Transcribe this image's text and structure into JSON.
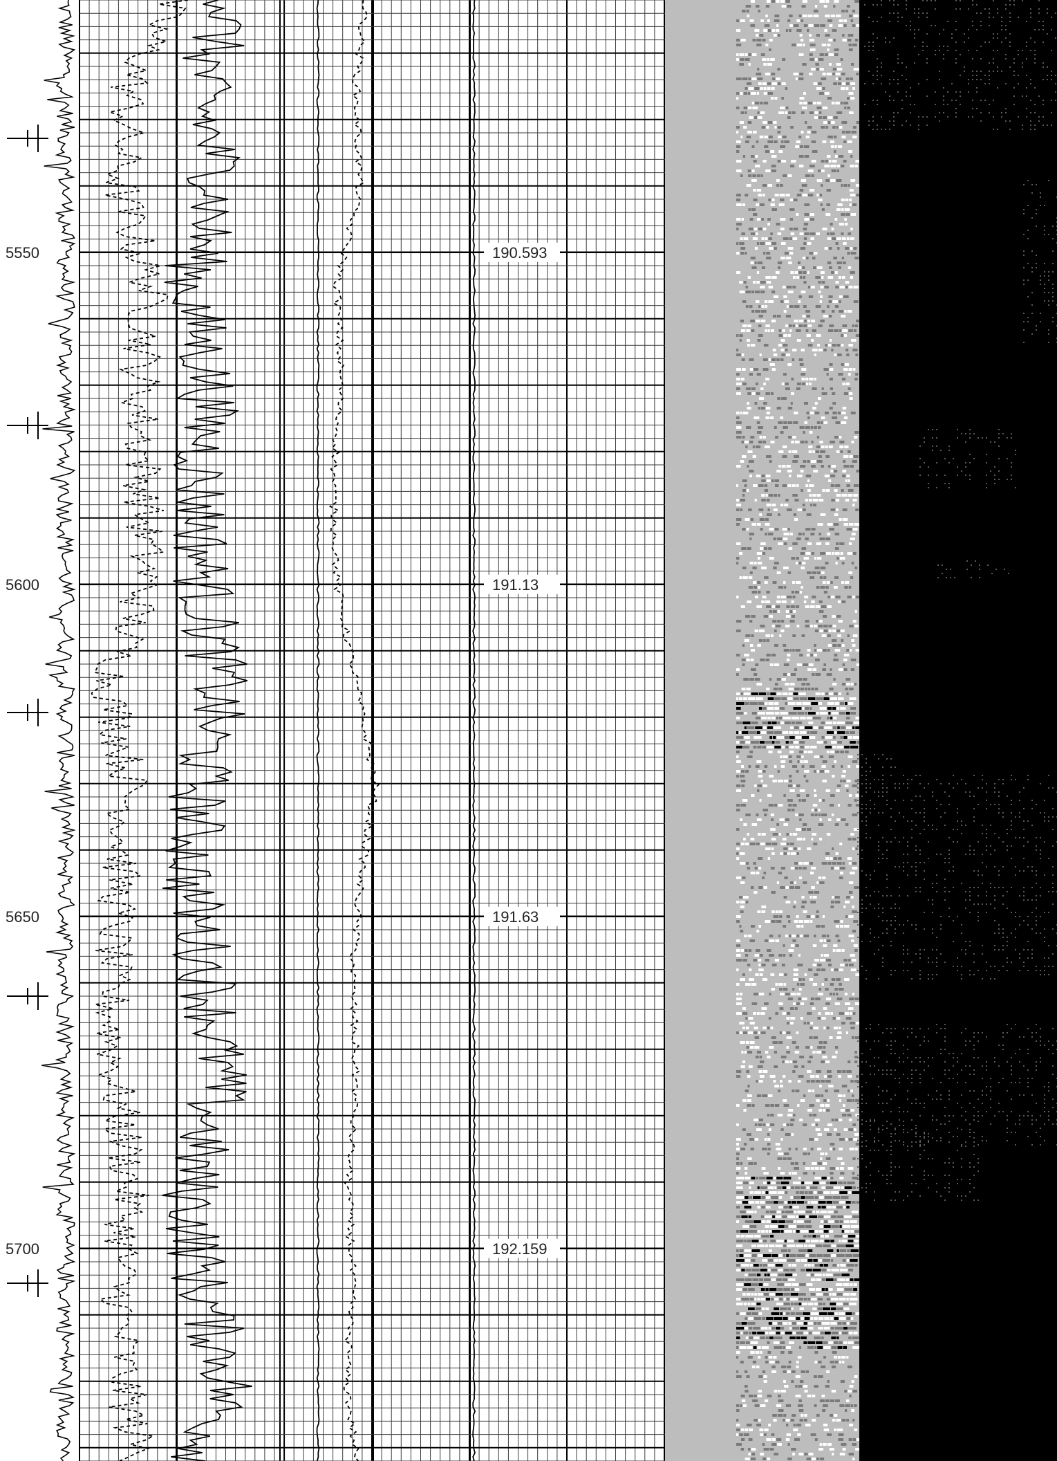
{
  "chart_data": {
    "type": "line",
    "title": "",
    "xlabel": "",
    "ylabel": "",
    "depth_range": [
      5512,
      5732
    ],
    "depth_ticks": [
      5550,
      5600,
      5650,
      5700
    ],
    "depth_tick_labels": [
      "5550",
      "5600",
      "5650",
      "5700"
    ],
    "track_value_labels": [
      {
        "depth": 5550,
        "text": "190.593"
      },
      {
        "depth": 5600,
        "text": "191.13"
      },
      {
        "depth": 5650,
        "text": "191.63"
      },
      {
        "depth": 5700,
        "text": "192.159"
      }
    ],
    "grid": true,
    "tracks": {
      "left_trace": {
        "style": "solid",
        "description": "high-frequency oscillating trace with spikes"
      },
      "track1": [
        {
          "style": "dashed",
          "depth_samples": [
            5512,
            5525,
            5540,
            5555,
            5570,
            5585,
            5600,
            5615,
            5630,
            5645,
            5660,
            5675,
            5690,
            5705,
            5720,
            5732
          ],
          "values": [
            0.45,
            0.25,
            0.2,
            0.35,
            0.3,
            0.32,
            0.33,
            0.15,
            0.25,
            0.2,
            0.15,
            0.18,
            0.25,
            0.2,
            0.22,
            0.3
          ]
        },
        {
          "style": "solid",
          "depth_samples": [
            5512,
            5525,
            5540,
            5555,
            5570,
            5585,
            5600,
            5615,
            5630,
            5645,
            5660,
            5675,
            5690,
            5705,
            5720,
            5732
          ],
          "values": [
            0.75,
            0.6,
            0.7,
            0.55,
            0.65,
            0.6,
            0.62,
            0.7,
            0.6,
            0.55,
            0.65,
            0.7,
            0.55,
            0.6,
            0.75,
            0.6
          ]
        }
      ],
      "track2": [
        {
          "style": "solid",
          "depth_samples": [
            5512,
            5732
          ],
          "values": [
            0.2,
            0.2
          ]
        },
        {
          "style": "dashed",
          "depth_samples": [
            5512,
            5525,
            5540,
            5555,
            5570,
            5585,
            5600,
            5615,
            5630,
            5645,
            5660,
            5675,
            5690,
            5705,
            5720,
            5732
          ],
          "values": [
            0.45,
            0.4,
            0.42,
            0.3,
            0.32,
            0.28,
            0.3,
            0.4,
            0.5,
            0.42,
            0.38,
            0.4,
            0.36,
            0.38,
            0.35,
            0.4
          ]
        }
      ],
      "track3": [
        {
          "style": "solid",
          "depth_samples": [
            5512,
            5732
          ],
          "values": [
            0.02,
            0.02
          ]
        }
      ],
      "image_track": {
        "type": "heatmap",
        "colors": [
          "#bdbdbd",
          "#ffffff",
          "#777777",
          "#000000"
        ]
      }
    },
    "colors": {
      "grid_minor": "#3a3a3a",
      "grid_major": "#000000",
      "trace": "#000000",
      "image_background": "#bdbdbd",
      "dark_panel": "#000000"
    }
  }
}
